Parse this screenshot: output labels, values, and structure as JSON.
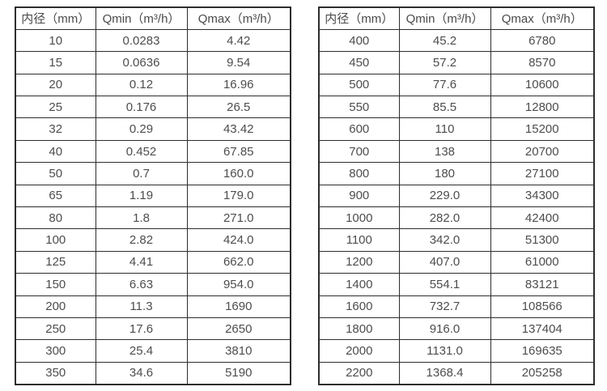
{
  "colors": {
    "background": "#ffffff",
    "border": "#2e2e2e",
    "text": "#4d4d4d"
  },
  "tables": [
    {
      "name": "flow-spec-small-diameters",
      "headers": [
        "内径（mm）",
        "Qmin（m³/h）",
        "Qmax（m³/h）"
      ],
      "rows": [
        [
          "10",
          "0.0283",
          "4.42"
        ],
        [
          "15",
          "0.0636",
          "9.54"
        ],
        [
          "20",
          "0.12",
          "16.96"
        ],
        [
          "25",
          "0.176",
          "26.5"
        ],
        [
          "32",
          "0.29",
          "43.42"
        ],
        [
          "40",
          "0.452",
          "67.85"
        ],
        [
          "50",
          "0.7",
          "160.0"
        ],
        [
          "65",
          "1.19",
          "179.0"
        ],
        [
          "80",
          "1.8",
          "271.0"
        ],
        [
          "100",
          "2.82",
          "424.0"
        ],
        [
          "125",
          "4.41",
          "662.0"
        ],
        [
          "150",
          "6.63",
          "954.0"
        ],
        [
          "200",
          "11.3",
          "1690"
        ],
        [
          "250",
          "17.6",
          "2650"
        ],
        [
          "300",
          "25.4",
          "3810"
        ],
        [
          "350",
          "34.6",
          "5190"
        ]
      ]
    },
    {
      "name": "flow-spec-large-diameters",
      "headers": [
        "内径（mm）",
        "Qmin（m³/h）",
        "Qmax（m³/h）"
      ],
      "rows": [
        [
          "400",
          "45.2",
          "6780"
        ],
        [
          "450",
          "57.2",
          "8570"
        ],
        [
          "500",
          "77.6",
          "10600"
        ],
        [
          "550",
          "85.5",
          "12800"
        ],
        [
          "600",
          "110",
          "15200"
        ],
        [
          "700",
          "138",
          "20700"
        ],
        [
          "800",
          "180",
          "27100"
        ],
        [
          "900",
          "229.0",
          "34300"
        ],
        [
          "1000",
          "282.0",
          "42400"
        ],
        [
          "1100",
          "342.0",
          "51300"
        ],
        [
          "1200",
          "407.0",
          "61000"
        ],
        [
          "1400",
          "554.1",
          "83121"
        ],
        [
          "1600",
          "732.7",
          "108566"
        ],
        [
          "1800",
          "916.0",
          "137404"
        ],
        [
          "2000",
          "1131.0",
          "169635"
        ],
        [
          "2200",
          "1368.4",
          "205258"
        ]
      ]
    }
  ]
}
